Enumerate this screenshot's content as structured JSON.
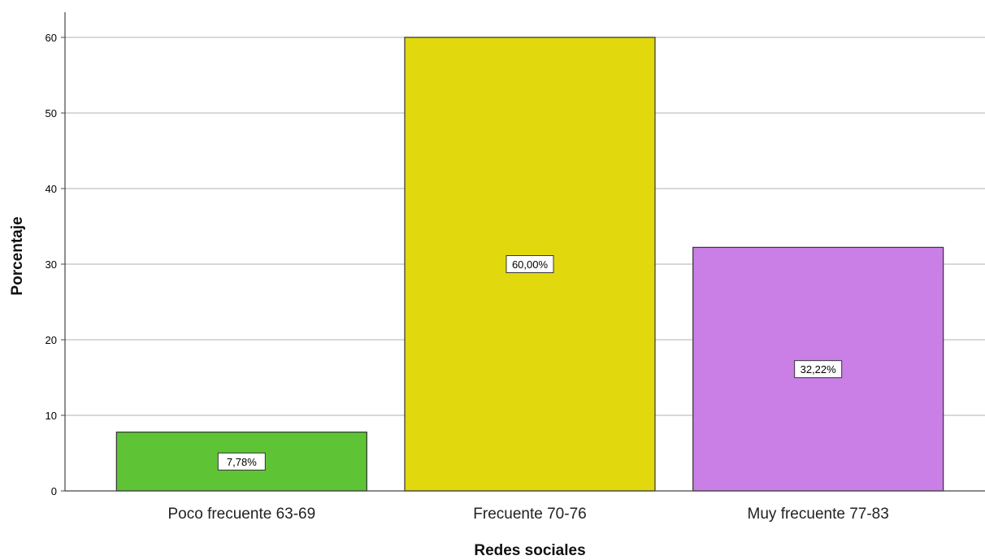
{
  "chart_data": {
    "type": "bar",
    "title": "",
    "xlabel": "Redes sociales",
    "ylabel": "Porcentaje",
    "ylim": [
      0,
      63.2
    ],
    "yticks": [
      0,
      10,
      20,
      30,
      40,
      50,
      60
    ],
    "grid": true,
    "legend": "none",
    "categories": [
      "Poco frecuente 63-69",
      "Frecuente 70-76",
      "Muy frecuente 77-83"
    ],
    "values": [
      7.78,
      60.0,
      32.22
    ],
    "data_labels": [
      "7,78%",
      "60,00%",
      "32,22%"
    ],
    "colors": [
      "#5ec436",
      "#e2d80e",
      "#c97fe6"
    ]
  }
}
